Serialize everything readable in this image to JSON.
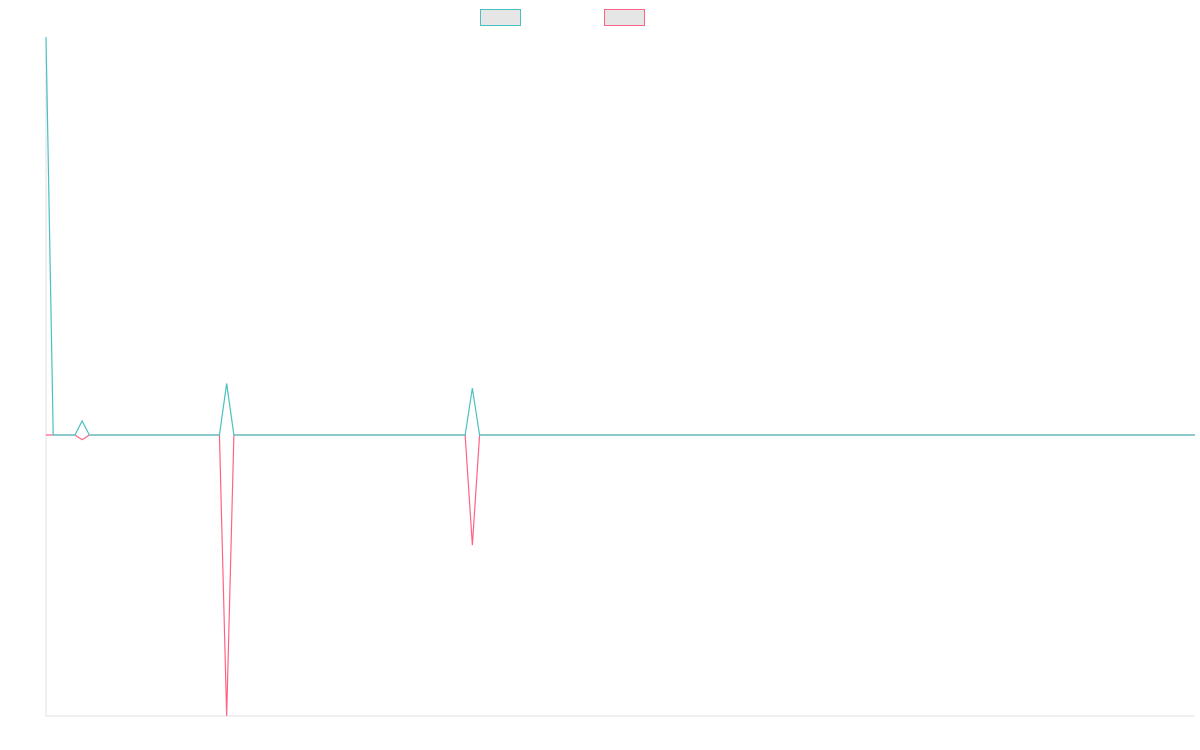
{
  "chart_data": {
    "type": "line",
    "categories": [
      null,
      null,
      null,
      null,
      null,
      null,
      null,
      null,
      null,
      null,
      null,
      null,
      null,
      null,
      null,
      null,
      null,
      null,
      null,
      null,
      null,
      null,
      null,
      null,
      null,
      null,
      null,
      null,
      null,
      null,
      null,
      null,
      null,
      null,
      null,
      null,
      null,
      null,
      null,
      null,
      null,
      null,
      null,
      null,
      null,
      null,
      null,
      null,
      null,
      null,
      null,
      null,
      null,
      null,
      null,
      null,
      null,
      null,
      null,
      null,
      null,
      null,
      null,
      null,
      null,
      null,
      null,
      null,
      null,
      null,
      null,
      null,
      null,
      null,
      null,
      null,
      null,
      null,
      null,
      null,
      null,
      null,
      null,
      null,
      null,
      null,
      null,
      null,
      null,
      null,
      null,
      null,
      null,
      null,
      null,
      null,
      null,
      null,
      null,
      null,
      null,
      null,
      null,
      null,
      null,
      null,
      null,
      null,
      null,
      null,
      null,
      null,
      null,
      null,
      null,
      null,
      null,
      null,
      null,
      null,
      null,
      null,
      null,
      null,
      null,
      null,
      null,
      null,
      null,
      null,
      null,
      null,
      null,
      null,
      null,
      null,
      null,
      null,
      null,
      null,
      null,
      null,
      null,
      null,
      null,
      null,
      null,
      null,
      null,
      null,
      null,
      null,
      null,
      null,
      null,
      null,
      null,
      null,
      null,
      null
    ],
    "series": [
      {
        "color": "#4bc0c0",
        "values": [
          85,
          0,
          0,
          0,
          0,
          3,
          0,
          0,
          0,
          0,
          0,
          0,
          0,
          0,
          0,
          0,
          0,
          0,
          0,
          0,
          0,
          0,
          0,
          0,
          0,
          11,
          0,
          0,
          0,
          0,
          0,
          0,
          0,
          0,
          0,
          0,
          0,
          0,
          0,
          0,
          0,
          0,
          0,
          0,
          0,
          0,
          0,
          0,
          0,
          0,
          0,
          0,
          0,
          0,
          0,
          0,
          0,
          0,
          0,
          10,
          0,
          0,
          0,
          0,
          0,
          0,
          0,
          0,
          0,
          0,
          0,
          0,
          0,
          0,
          0,
          0,
          0,
          0,
          0,
          0,
          0,
          0,
          0,
          0,
          0,
          0,
          0,
          0,
          0,
          0,
          0,
          0,
          0,
          0,
          0,
          0,
          0,
          0,
          0,
          0,
          0,
          0,
          0,
          0,
          0,
          0,
          0,
          0,
          0,
          0,
          0,
          0,
          0,
          0,
          0,
          0,
          0,
          0,
          0,
          0,
          0,
          0,
          0,
          0,
          0,
          0,
          0,
          0,
          0,
          0,
          0,
          0,
          0,
          0,
          0,
          0,
          0,
          0,
          0,
          0,
          0,
          0,
          0,
          0,
          0,
          0,
          0,
          0,
          0,
          0,
          0,
          0,
          0,
          0,
          0,
          0,
          0,
          0,
          0,
          0
        ]
      },
      {
        "color": "#ff6384",
        "values": [
          0,
          0,
          0,
          0,
          0,
          -1,
          0,
          0,
          0,
          0,
          0,
          0,
          0,
          0,
          0,
          0,
          0,
          0,
          0,
          0,
          0,
          0,
          0,
          0,
          0,
          -60,
          0,
          0,
          0,
          0,
          0,
          0,
          0,
          0,
          0,
          0,
          0,
          0,
          0,
          0,
          0,
          0,
          0,
          0,
          0,
          0,
          0,
          0,
          0,
          0,
          0,
          0,
          0,
          0,
          0,
          0,
          0,
          0,
          0,
          -23.5,
          0,
          0,
          0,
          0,
          0,
          0,
          0,
          0,
          0,
          0,
          0,
          0,
          0,
          0,
          0,
          0,
          0,
          0,
          0,
          0,
          0,
          0,
          0,
          0,
          0,
          0,
          0,
          0,
          0,
          0,
          0,
          0,
          0,
          0,
          0,
          0,
          0,
          0,
          0,
          0,
          0,
          0,
          0,
          0,
          0,
          0,
          0,
          0,
          0,
          0,
          0,
          0,
          0,
          0,
          0,
          0,
          0,
          0,
          0,
          0,
          0,
          0,
          0,
          0,
          0,
          0,
          0,
          0,
          0,
          0,
          0,
          0,
          0,
          0,
          0,
          0,
          0,
          0,
          0,
          0,
          0,
          0,
          0,
          0,
          0,
          0,
          0,
          0,
          0,
          0,
          0,
          0,
          0,
          0,
          0,
          0,
          0,
          0,
          0,
          0
        ]
      }
    ],
    "ylim": [
      -60,
      85
    ]
  }
}
